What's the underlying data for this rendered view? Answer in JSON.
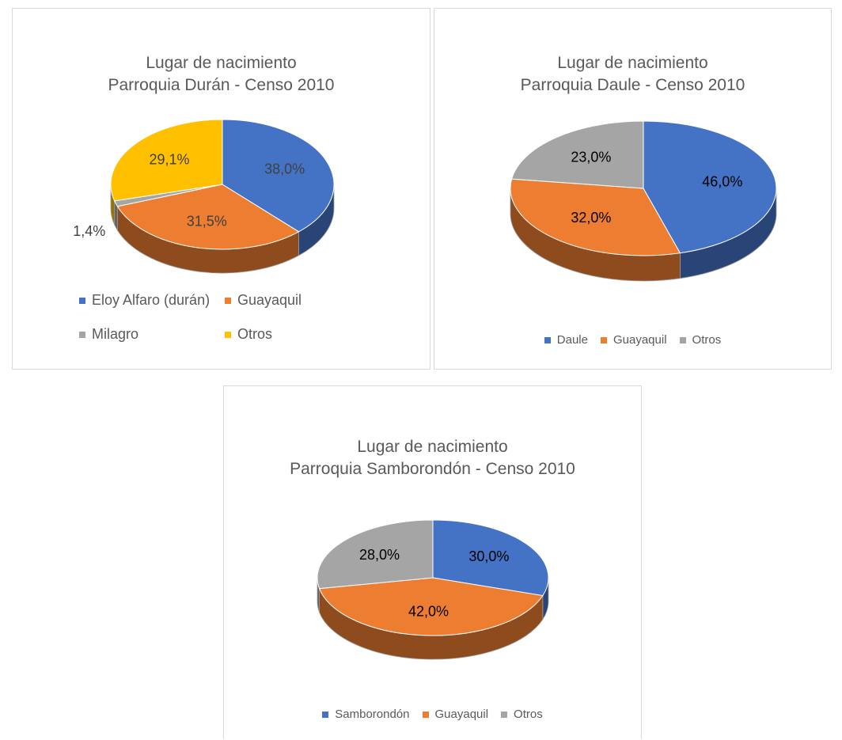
{
  "chart_data": [
    {
      "type": "pie",
      "title": "Lugar de nacimiento\nParroquia Durán - Censo 2010",
      "categories": [
        "Eloy Alfaro (durán)",
        "Guayaquil",
        "Milagro",
        "Otros"
      ],
      "values": [
        38.0,
        31.5,
        1.4,
        29.1
      ],
      "value_labels": [
        "38,0%",
        "31,5%",
        "1,4%",
        "29,1%"
      ],
      "colors": [
        "#4472c4",
        "#ed7d31",
        "#a5a5a5",
        "#ffc000"
      ]
    },
    {
      "type": "pie",
      "title": "Lugar de nacimiento\nParroquia Daule - Censo 2010",
      "categories": [
        "Daule",
        "Guayaquil",
        "Otros"
      ],
      "values": [
        46.0,
        32.0,
        23.0
      ],
      "value_labels": [
        "46,0%",
        "32,0%",
        "23,0%"
      ],
      "colors": [
        "#4472c4",
        "#ed7d31",
        "#a5a5a5"
      ]
    },
    {
      "type": "pie",
      "title": "Lugar de nacimiento\nParroquia Samborondón - Censo 2010",
      "categories": [
        "Samborondón",
        "Guayaquil",
        "Otros"
      ],
      "values": [
        30.0,
        42.0,
        28.0
      ],
      "value_labels": [
        "30,0%",
        "42,0%",
        "28,0%"
      ],
      "colors": [
        "#4472c4",
        "#ed7d31",
        "#a5a5a5"
      ]
    }
  ]
}
